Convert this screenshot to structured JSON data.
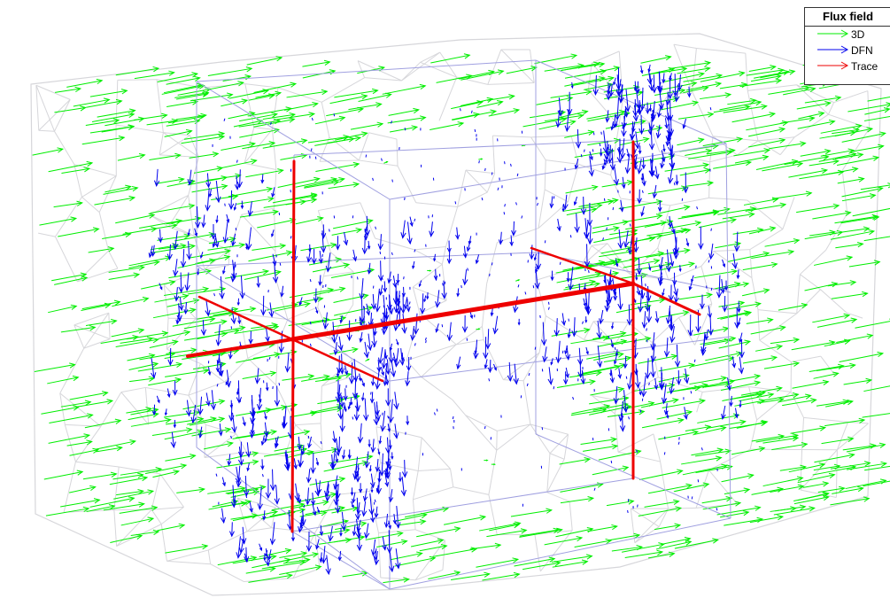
{
  "legend": {
    "title": "Flux field",
    "entries": [
      {
        "label": "3D",
        "color": "#00ee00"
      },
      {
        "label": "DFN",
        "color": "#0000ee"
      },
      {
        "label": "Trace",
        "color": "#ee0000"
      }
    ]
  },
  "colors": {
    "mesh": "#d6d6da",
    "box_edge": "#a0a0e0",
    "flux_3d": "#00ee00",
    "flux_dfn": "#0000ee",
    "flux_trace": "#ee0000"
  }
}
